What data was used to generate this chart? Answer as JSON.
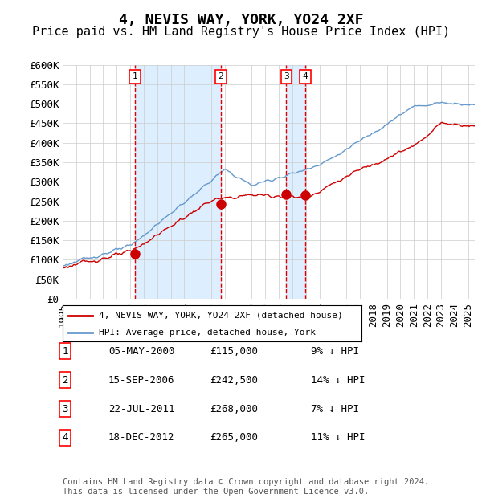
{
  "title": "4, NEVIS WAY, YORK, YO24 2XF",
  "subtitle": "Price paid vs. HM Land Registry's House Price Index (HPI)",
  "ylabel_ticks": [
    "£0",
    "£50K",
    "£100K",
    "£150K",
    "£200K",
    "£250K",
    "£300K",
    "£350K",
    "£400K",
    "£450K",
    "£500K",
    "£550K",
    "£600K"
  ],
  "ylim": [
    0,
    600000
  ],
  "ytick_vals": [
    0,
    50000,
    100000,
    150000,
    200000,
    250000,
    300000,
    350000,
    400000,
    450000,
    500000,
    550000,
    600000
  ],
  "xlim_start": 1995.0,
  "xlim_end": 2025.5,
  "hpi_color": "#6699cc",
  "price_color": "#cc0000",
  "marker_color": "#cc0000",
  "vline_color": "#dd0000",
  "shade_color": "#ddeeff",
  "background_color": "#ffffff",
  "grid_color": "#cccccc",
  "purchases": [
    {
      "label": "1",
      "year_x": 2000.35,
      "price": 115000,
      "date": "05-MAY-2000",
      "price_str": "£115,000",
      "pct": "9% ↓ HPI"
    },
    {
      "label": "2",
      "year_x": 2006.71,
      "price": 242500,
      "date": "15-SEP-2006",
      "price_str": "£242,500",
      "pct": "14% ↓ HPI"
    },
    {
      "label": "3",
      "year_x": 2011.55,
      "price": 268000,
      "date": "22-JUL-2011",
      "price_str": "£268,000",
      "pct": "7% ↓ HPI"
    },
    {
      "label": "4",
      "year_x": 2012.96,
      "price": 265000,
      "date": "18-DEC-2012",
      "price_str": "£265,000",
      "pct": "11% ↓ HPI"
    }
  ],
  "legend_label_red": "4, NEVIS WAY, YORK, YO24 2XF (detached house)",
  "legend_label_blue": "HPI: Average price, detached house, York",
  "footnote": "Contains HM Land Registry data © Crown copyright and database right 2024.\nThis data is licensed under the Open Government Licence v3.0.",
  "title_fontsize": 13,
  "subtitle_fontsize": 11,
  "tick_fontsize": 9,
  "footnote_fontsize": 7.5
}
